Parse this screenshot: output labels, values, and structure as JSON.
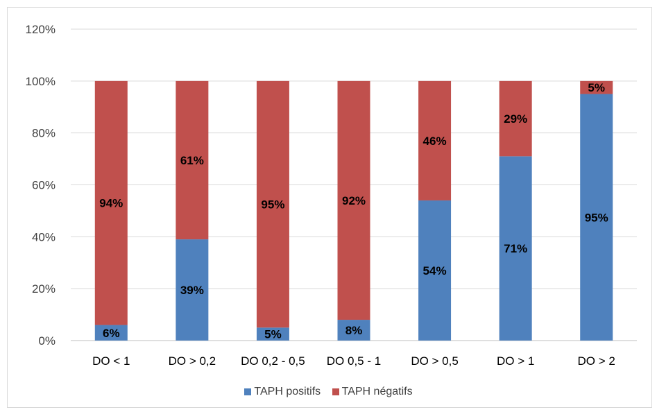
{
  "chart_data": {
    "type": "bar",
    "stacked": true,
    "categories": [
      "DO < 1",
      "DO > 0,2",
      "DO 0,2 - 0,5",
      "DO 0,5 - 1",
      "DO > 0,5",
      "DO > 1",
      "DO > 2"
    ],
    "series": [
      {
        "name": "TAPH positifs",
        "color": "#4f81bd",
        "values": [
          6,
          39,
          5,
          8,
          54,
          71,
          95
        ],
        "labels": [
          "6%",
          "39%",
          "5%",
          "8%",
          "54%",
          "71%",
          "95%"
        ]
      },
      {
        "name": "TAPH négatifs",
        "color": "#c0504d",
        "values": [
          94,
          61,
          95,
          92,
          46,
          29,
          5
        ],
        "labels": [
          "94%",
          "61%",
          "95%",
          "92%",
          "46%",
          "29%",
          "5%"
        ]
      }
    ],
    "y_ticks": [
      "0%",
      "20%",
      "40%",
      "60%",
      "80%",
      "100%",
      "120%"
    ],
    "ylim": [
      0,
      120
    ],
    "grid": true,
    "legend_position": "bottom"
  }
}
